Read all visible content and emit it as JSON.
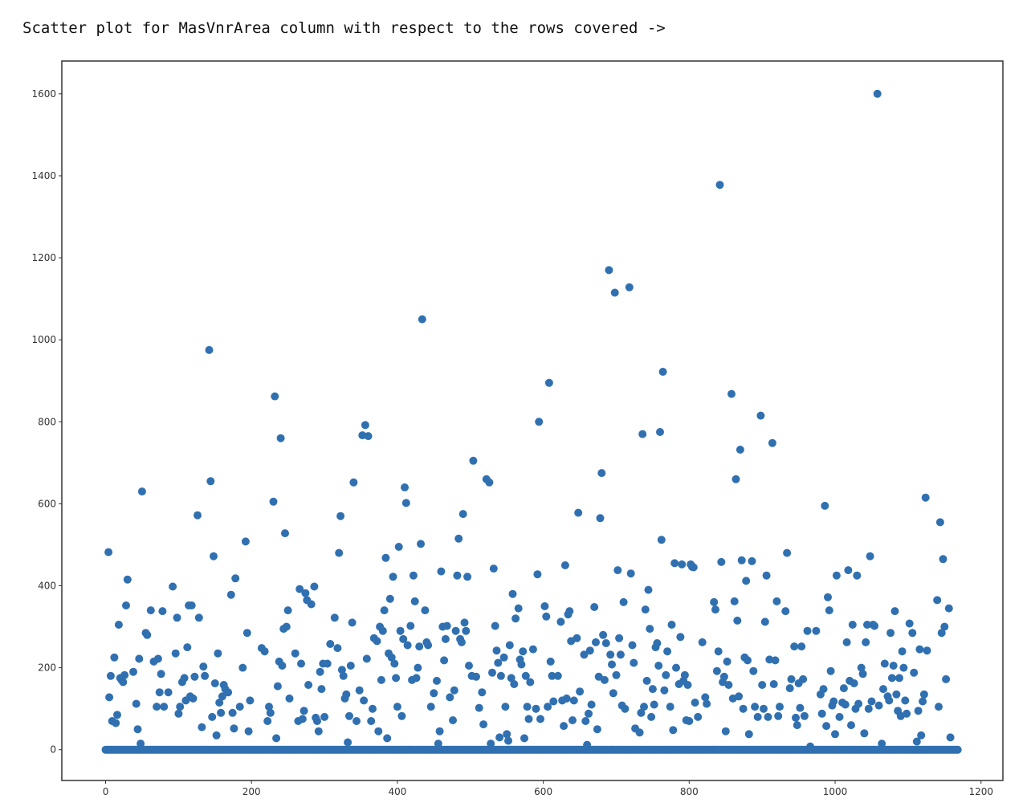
{
  "caption": "Scatter plot for MasVnrArea column with respect to the rows covered ->",
  "chart_data": {
    "type": "scatter",
    "title": "",
    "xlabel": "",
    "ylabel": "",
    "xlim": [
      -60,
      1230
    ],
    "ylim": [
      -75,
      1680
    ],
    "grid": false,
    "legend": "none",
    "marker_color": "#3070b0",
    "xticks": [
      0,
      200,
      400,
      600,
      800,
      1000,
      1200
    ],
    "yticks": [
      0,
      200,
      400,
      600,
      800,
      1000,
      1200,
      1400,
      1600
    ],
    "tick_labels_x": [
      "0",
      "200",
      "400",
      "600",
      "800",
      "1000",
      "1200"
    ],
    "tick_labels_y": [
      "0",
      "200",
      "400",
      "600",
      "800",
      "1000",
      "1200",
      "1400",
      "1600"
    ],
    "zero_baseline_range": [
      0,
      1168
    ],
    "points": [
      [
        4,
        482
      ],
      [
        5,
        128
      ],
      [
        7,
        180
      ],
      [
        9,
        70
      ],
      [
        12,
        225
      ],
      [
        14,
        65
      ],
      [
        16,
        85
      ],
      [
        18,
        305
      ],
      [
        20,
        175
      ],
      [
        22,
        170
      ],
      [
        24,
        165
      ],
      [
        26,
        182
      ],
      [
        28,
        352
      ],
      [
        30,
        415
      ],
      [
        38,
        190
      ],
      [
        42,
        112
      ],
      [
        44,
        50
      ],
      [
        46,
        222
      ],
      [
        48,
        15
      ],
      [
        50,
        630
      ],
      [
        55,
        285
      ],
      [
        57,
        280
      ],
      [
        62,
        340
      ],
      [
        66,
        215
      ],
      [
        70,
        105
      ],
      [
        72,
        222
      ],
      [
        74,
        140
      ],
      [
        76,
        185
      ],
      [
        78,
        338
      ],
      [
        80,
        105
      ],
      [
        86,
        140
      ],
      [
        92,
        398
      ],
      [
        96,
        235
      ],
      [
        98,
        322
      ],
      [
        100,
        88
      ],
      [
        102,
        105
      ],
      [
        105,
        165
      ],
      [
        108,
        175
      ],
      [
        110,
        120
      ],
      [
        112,
        250
      ],
      [
        114,
        352
      ],
      [
        116,
        130
      ],
      [
        118,
        352
      ],
      [
        120,
        125
      ],
      [
        122,
        178
      ],
      [
        126,
        572
      ],
      [
        128,
        322
      ],
      [
        132,
        55
      ],
      [
        134,
        203
      ],
      [
        136,
        180
      ],
      [
        142,
        975
      ],
      [
        144,
        655
      ],
      [
        146,
        80
      ],
      [
        148,
        472
      ],
      [
        150,
        162
      ],
      [
        152,
        35
      ],
      [
        154,
        235
      ],
      [
        156,
        115
      ],
      [
        158,
        90
      ],
      [
        160,
        130
      ],
      [
        162,
        158
      ],
      [
        164,
        148
      ],
      [
        168,
        140
      ],
      [
        172,
        378
      ],
      [
        174,
        90
      ],
      [
        176,
        52
      ],
      [
        178,
        418
      ],
      [
        184,
        105
      ],
      [
        188,
        200
      ],
      [
        192,
        508
      ],
      [
        194,
        285
      ],
      [
        196,
        45
      ],
      [
        198,
        120
      ],
      [
        214,
        248
      ],
      [
        218,
        240
      ],
      [
        222,
        70
      ],
      [
        224,
        105
      ],
      [
        226,
        90
      ],
      [
        230,
        605
      ],
      [
        232,
        862
      ],
      [
        234,
        28
      ],
      [
        236,
        155
      ],
      [
        238,
        215
      ],
      [
        240,
        760
      ],
      [
        242,
        205
      ],
      [
        244,
        295
      ],
      [
        246,
        528
      ],
      [
        248,
        300
      ],
      [
        250,
        340
      ],
      [
        252,
        125
      ],
      [
        260,
        235
      ],
      [
        264,
        70
      ],
      [
        266,
        392
      ],
      [
        268,
        210
      ],
      [
        270,
        75
      ],
      [
        272,
        95
      ],
      [
        274,
        382
      ],
      [
        276,
        365
      ],
      [
        278,
        158
      ],
      [
        282,
        355
      ],
      [
        286,
        398
      ],
      [
        288,
        78
      ],
      [
        290,
        70
      ],
      [
        292,
        45
      ],
      [
        294,
        190
      ],
      [
        296,
        148
      ],
      [
        298,
        210
      ],
      [
        300,
        80
      ],
      [
        304,
        210
      ],
      [
        308,
        258
      ],
      [
        314,
        322
      ],
      [
        318,
        248
      ],
      [
        320,
        480
      ],
      [
        322,
        570
      ],
      [
        324,
        195
      ],
      [
        326,
        180
      ],
      [
        328,
        125
      ],
      [
        330,
        135
      ],
      [
        332,
        18
      ],
      [
        334,
        82
      ],
      [
        336,
        205
      ],
      [
        338,
        310
      ],
      [
        340,
        652
      ],
      [
        344,
        70
      ],
      [
        348,
        145
      ],
      [
        352,
        767
      ],
      [
        354,
        120
      ],
      [
        356,
        792
      ],
      [
        358,
        222
      ],
      [
        360,
        765
      ],
      [
        364,
        70
      ],
      [
        366,
        100
      ],
      [
        368,
        272
      ],
      [
        372,
        265
      ],
      [
        374,
        45
      ],
      [
        376,
        300
      ],
      [
        378,
        170
      ],
      [
        380,
        290
      ],
      [
        382,
        340
      ],
      [
        384,
        468
      ],
      [
        386,
        28
      ],
      [
        388,
        235
      ],
      [
        390,
        368
      ],
      [
        392,
        225
      ],
      [
        394,
        422
      ],
      [
        396,
        210
      ],
      [
        398,
        175
      ],
      [
        400,
        105
      ],
      [
        402,
        495
      ],
      [
        404,
        290
      ],
      [
        406,
        82
      ],
      [
        408,
        270
      ],
      [
        410,
        640
      ],
      [
        412,
        602
      ],
      [
        414,
        255
      ],
      [
        418,
        302
      ],
      [
        420,
        170
      ],
      [
        422,
        425
      ],
      [
        424,
        362
      ],
      [
        426,
        175
      ],
      [
        428,
        200
      ],
      [
        430,
        252
      ],
      [
        432,
        502
      ],
      [
        434,
        1050
      ],
      [
        438,
        340
      ],
      [
        440,
        262
      ],
      [
        442,
        255
      ],
      [
        446,
        105
      ],
      [
        450,
        138
      ],
      [
        454,
        168
      ],
      [
        456,
        15
      ],
      [
        458,
        45
      ],
      [
        460,
        435
      ],
      [
        462,
        300
      ],
      [
        464,
        218
      ],
      [
        466,
        270
      ],
      [
        468,
        302
      ],
      [
        472,
        128
      ],
      [
        476,
        72
      ],
      [
        478,
        145
      ],
      [
        480,
        290
      ],
      [
        482,
        425
      ],
      [
        484,
        515
      ],
      [
        486,
        270
      ],
      [
        488,
        262
      ],
      [
        490,
        575
      ],
      [
        492,
        310
      ],
      [
        494,
        290
      ],
      [
        496,
        422
      ],
      [
        498,
        205
      ],
      [
        502,
        180
      ],
      [
        504,
        705
      ],
      [
        508,
        178
      ],
      [
        512,
        102
      ],
      [
        516,
        140
      ],
      [
        518,
        62
      ],
      [
        522,
        660
      ],
      [
        526,
        652
      ],
      [
        528,
        15
      ],
      [
        530,
        188
      ],
      [
        532,
        442
      ],
      [
        534,
        302
      ],
      [
        536,
        242
      ],
      [
        538,
        212
      ],
      [
        540,
        30
      ],
      [
        542,
        180
      ],
      [
        546,
        225
      ],
      [
        548,
        105
      ],
      [
        550,
        38
      ],
      [
        552,
        22
      ],
      [
        554,
        255
      ],
      [
        556,
        175
      ],
      [
        558,
        380
      ],
      [
        560,
        160
      ],
      [
        562,
        320
      ],
      [
        566,
        345
      ],
      [
        568,
        220
      ],
      [
        570,
        208
      ],
      [
        572,
        240
      ],
      [
        574,
        28
      ],
      [
        576,
        180
      ],
      [
        578,
        105
      ],
      [
        580,
        75
      ],
      [
        582,
        165
      ],
      [
        586,
        245
      ],
      [
        590,
        100
      ],
      [
        592,
        428
      ],
      [
        594,
        800
      ],
      [
        596,
        75
      ],
      [
        602,
        350
      ],
      [
        604,
        325
      ],
      [
        606,
        105
      ],
      [
        608,
        895
      ],
      [
        610,
        215
      ],
      [
        612,
        180
      ],
      [
        614,
        118
      ],
      [
        620,
        180
      ],
      [
        624,
        312
      ],
      [
        626,
        120
      ],
      [
        628,
        58
      ],
      [
        630,
        450
      ],
      [
        632,
        125
      ],
      [
        634,
        330
      ],
      [
        636,
        338
      ],
      [
        638,
        265
      ],
      [
        640,
        72
      ],
      [
        642,
        120
      ],
      [
        646,
        272
      ],
      [
        648,
        578
      ],
      [
        650,
        142
      ],
      [
        656,
        232
      ],
      [
        658,
        70
      ],
      [
        660,
        12
      ],
      [
        662,
        88
      ],
      [
        664,
        242
      ],
      [
        666,
        110
      ],
      [
        670,
        348
      ],
      [
        672,
        262
      ],
      [
        674,
        50
      ],
      [
        676,
        178
      ],
      [
        678,
        565
      ],
      [
        680,
        675
      ],
      [
        682,
        280
      ],
      [
        684,
        170
      ],
      [
        686,
        260
      ],
      [
        690,
        1170
      ],
      [
        692,
        232
      ],
      [
        694,
        208
      ],
      [
        696,
        138
      ],
      [
        698,
        1115
      ],
      [
        700,
        182
      ],
      [
        702,
        438
      ],
      [
        704,
        272
      ],
      [
        706,
        232
      ],
      [
        708,
        108
      ],
      [
        710,
        360
      ],
      [
        712,
        100
      ],
      [
        718,
        1128
      ],
      [
        720,
        430
      ],
      [
        722,
        255
      ],
      [
        724,
        212
      ],
      [
        726,
        52
      ],
      [
        732,
        42
      ],
      [
        734,
        90
      ],
      [
        736,
        770
      ],
      [
        738,
        105
      ],
      [
        740,
        342
      ],
      [
        742,
        168
      ],
      [
        744,
        390
      ],
      [
        746,
        295
      ],
      [
        748,
        80
      ],
      [
        750,
        148
      ],
      [
        752,
        110
      ],
      [
        754,
        250
      ],
      [
        756,
        260
      ],
      [
        758,
        205
      ],
      [
        760,
        775
      ],
      [
        762,
        512
      ],
      [
        764,
        922
      ],
      [
        766,
        145
      ],
      [
        768,
        182
      ],
      [
        770,
        240
      ],
      [
        774,
        105
      ],
      [
        776,
        305
      ],
      [
        778,
        48
      ],
      [
        780,
        455
      ],
      [
        782,
        200
      ],
      [
        786,
        160
      ],
      [
        788,
        275
      ],
      [
        790,
        452
      ],
      [
        792,
        168
      ],
      [
        794,
        182
      ],
      [
        796,
        72
      ],
      [
        798,
        158
      ],
      [
        800,
        70
      ],
      [
        802,
        452
      ],
      [
        804,
        446
      ],
      [
        806,
        445
      ],
      [
        808,
        115
      ],
      [
        812,
        80
      ],
      [
        818,
        262
      ],
      [
        822,
        128
      ],
      [
        824,
        112
      ],
      [
        834,
        360
      ],
      [
        836,
        342
      ],
      [
        838,
        192
      ],
      [
        840,
        240
      ],
      [
        842,
        1378
      ],
      [
        844,
        458
      ],
      [
        846,
        165
      ],
      [
        848,
        178
      ],
      [
        850,
        45
      ],
      [
        852,
        215
      ],
      [
        854,
        158
      ],
      [
        858,
        868
      ],
      [
        860,
        125
      ],
      [
        862,
        362
      ],
      [
        864,
        660
      ],
      [
        866,
        315
      ],
      [
        868,
        130
      ],
      [
        870,
        732
      ],
      [
        872,
        462
      ],
      [
        874,
        100
      ],
      [
        876,
        225
      ],
      [
        878,
        412
      ],
      [
        880,
        218
      ],
      [
        882,
        38
      ],
      [
        886,
        460
      ],
      [
        888,
        192
      ],
      [
        890,
        105
      ],
      [
        894,
        80
      ],
      [
        898,
        815
      ],
      [
        900,
        158
      ],
      [
        902,
        100
      ],
      [
        904,
        312
      ],
      [
        906,
        425
      ],
      [
        908,
        80
      ],
      [
        910,
        220
      ],
      [
        914,
        748
      ],
      [
        916,
        160
      ],
      [
        918,
        218
      ],
      [
        920,
        362
      ],
      [
        922,
        82
      ],
      [
        924,
        105
      ],
      [
        932,
        338
      ],
      [
        934,
        480
      ],
      [
        938,
        150
      ],
      [
        940,
        172
      ],
      [
        944,
        252
      ],
      [
        946,
        78
      ],
      [
        948,
        60
      ],
      [
        950,
        162
      ],
      [
        952,
        102
      ],
      [
        954,
        252
      ],
      [
        956,
        172
      ],
      [
        958,
        82
      ],
      [
        962,
        290
      ],
      [
        966,
        8
      ],
      [
        974,
        290
      ],
      [
        980,
        135
      ],
      [
        982,
        88
      ],
      [
        984,
        148
      ],
      [
        986,
        595
      ],
      [
        988,
        58
      ],
      [
        990,
        372
      ],
      [
        992,
        340
      ],
      [
        994,
        192
      ],
      [
        996,
        108
      ],
      [
        998,
        118
      ],
      [
        1000,
        38
      ],
      [
        1002,
        425
      ],
      [
        1006,
        80
      ],
      [
        1010,
        115
      ],
      [
        1012,
        150
      ],
      [
        1014,
        110
      ],
      [
        1016,
        262
      ],
      [
        1018,
        438
      ],
      [
        1020,
        168
      ],
      [
        1022,
        60
      ],
      [
        1024,
        305
      ],
      [
        1026,
        162
      ],
      [
        1028,
        100
      ],
      [
        1030,
        425
      ],
      [
        1032,
        112
      ],
      [
        1036,
        200
      ],
      [
        1038,
        185
      ],
      [
        1040,
        40
      ],
      [
        1042,
        262
      ],
      [
        1044,
        305
      ],
      [
        1046,
        100
      ],
      [
        1048,
        472
      ],
      [
        1050,
        118
      ],
      [
        1052,
        305
      ],
      [
        1054,
        302
      ],
      [
        1058,
        1600
      ],
      [
        1060,
        108
      ],
      [
        1064,
        15
      ],
      [
        1066,
        148
      ],
      [
        1068,
        210
      ],
      [
        1072,
        130
      ],
      [
        1074,
        120
      ],
      [
        1076,
        285
      ],
      [
        1078,
        175
      ],
      [
        1080,
        205
      ],
      [
        1082,
        338
      ],
      [
        1084,
        135
      ],
      [
        1086,
        95
      ],
      [
        1088,
        175
      ],
      [
        1090,
        82
      ],
      [
        1092,
        240
      ],
      [
        1094,
        200
      ],
      [
        1096,
        120
      ],
      [
        1098,
        88
      ],
      [
        1102,
        308
      ],
      [
        1106,
        285
      ],
      [
        1108,
        188
      ],
      [
        1112,
        20
      ],
      [
        1114,
        95
      ],
      [
        1116,
        245
      ],
      [
        1118,
        35
      ],
      [
        1120,
        118
      ],
      [
        1122,
        135
      ],
      [
        1124,
        615
      ],
      [
        1126,
        242
      ],
      [
        1140,
        365
      ],
      [
        1142,
        105
      ],
      [
        1144,
        555
      ],
      [
        1146,
        285
      ],
      [
        1148,
        465
      ],
      [
        1150,
        300
      ],
      [
        1152,
        172
      ],
      [
        1156,
        345
      ],
      [
        1158,
        30
      ]
    ]
  }
}
